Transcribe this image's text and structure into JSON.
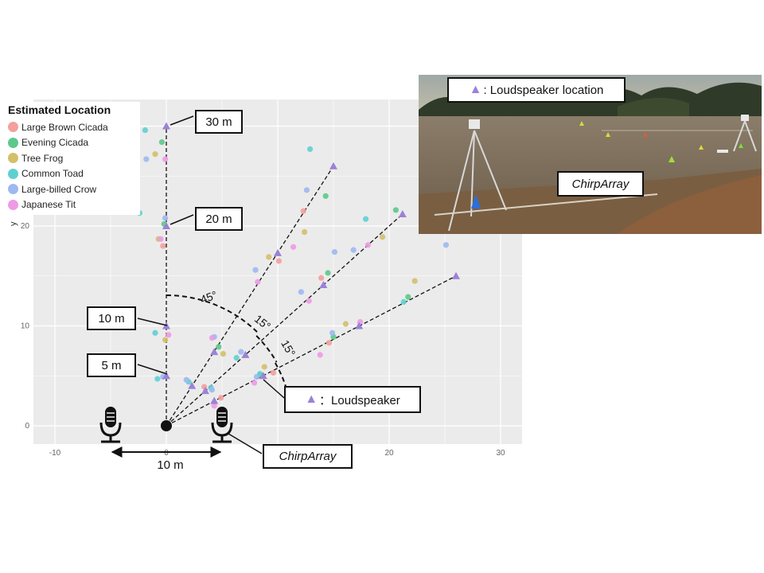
{
  "legend": {
    "title": "Estimated Location",
    "items": [
      {
        "label": "Large Brown Cicada",
        "color": "#F4A09C"
      },
      {
        "label": "Evening Cicada",
        "color": "#5CC98A"
      },
      {
        "label": "Tree Frog",
        "color": "#D4BF6A"
      },
      {
        "label": "Common Toad",
        "color": "#5FD0D0"
      },
      {
        "label": "Large-billed Crow",
        "color": "#9DB8F2"
      },
      {
        "label": "Japanese Tit",
        "color": "#EE9AE5"
      }
    ]
  },
  "axes": {
    "ylabel": "y",
    "xticks": [
      "-10",
      "0",
      "10",
      "20",
      "30"
    ],
    "yticks": [
      "0",
      "10",
      "20"
    ]
  },
  "callouts": {
    "d30": "30 m",
    "d20": "20 m",
    "d10": "10 m",
    "d5": "5 m",
    "loudspeaker_symbol": "▲",
    "loudspeaker": "：Loudspeaker",
    "chirparray": "ChirpArray",
    "spacing": "10 m"
  },
  "angles": {
    "a45": "45°",
    "a15a": "15°",
    "a15b": "15°"
  },
  "photo": {
    "legend_symbol": "▲",
    "legend_text": ": Loudspeaker location",
    "chirparray": "ChirpArray"
  },
  "colors": {
    "speaker": "#9B82D6",
    "panel": "#EBEBEB",
    "grid": "#FFFFFF"
  },
  "chart_data": {
    "type": "scatter",
    "x_range": [
      -11,
      32
    ],
    "y_range": [
      -2,
      33
    ],
    "microphones": [
      {
        "x": -5,
        "y": 0
      },
      {
        "x": 5,
        "y": 0
      }
    ],
    "origin": {
      "x": 0,
      "y": 0
    },
    "loudspeakers": [
      {
        "x": 0,
        "y": 5
      },
      {
        "x": 0,
        "y": 10
      },
      {
        "x": 0,
        "y": 20
      },
      {
        "x": 0,
        "y": 30
      },
      {
        "x": 2.3,
        "y": 4.0
      },
      {
        "x": 4.3,
        "y": 7.4
      },
      {
        "x": 10.0,
        "y": 17.3
      },
      {
        "x": 15.0,
        "y": 26.0
      },
      {
        "x": 3.5,
        "y": 3.5
      },
      {
        "x": 7.1,
        "y": 7.1
      },
      {
        "x": 14.1,
        "y": 14.1
      },
      {
        "x": 21.2,
        "y": 21.2
      },
      {
        "x": 4.3,
        "y": 2.5
      },
      {
        "x": 8.7,
        "y": 5.0
      },
      {
        "x": 17.3,
        "y": 10.0
      },
      {
        "x": 26.0,
        "y": 15.0
      }
    ],
    "estimated": [
      {
        "species": 0,
        "points": [
          [
            -0.3,
            18.0
          ],
          [
            12.3,
            21.5
          ],
          [
            10.1,
            16.5
          ],
          [
            13.9,
            14.8
          ],
          [
            3.4,
            3.9
          ],
          [
            4.9,
            2.8
          ],
          [
            9.6,
            5.3
          ],
          [
            14.6,
            8.3
          ]
        ]
      },
      {
        "species": 1,
        "points": [
          [
            -0.4,
            28.4
          ],
          [
            -0.2,
            20.2
          ],
          [
            14.3,
            23.0
          ],
          [
            14.5,
            15.3
          ],
          [
            20.6,
            21.6
          ],
          [
            21.7,
            12.9
          ],
          [
            4.7,
            7.9
          ],
          [
            8.4,
            5.1
          ],
          [
            15.0,
            8.9
          ]
        ]
      },
      {
        "species": 2,
        "points": [
          [
            -1.0,
            27.2
          ],
          [
            -0.7,
            18.7
          ],
          [
            -0.1,
            8.6
          ],
          [
            9.2,
            16.9
          ],
          [
            12.4,
            19.4
          ],
          [
            19.4,
            18.9
          ],
          [
            22.3,
            14.5
          ],
          [
            16.1,
            10.2
          ],
          [
            5.1,
            7.2
          ],
          [
            8.8,
            5.9
          ]
        ]
      },
      {
        "species": 3,
        "points": [
          [
            -1.9,
            29.6
          ],
          [
            -2.4,
            21.3
          ],
          [
            12.9,
            27.7
          ],
          [
            17.9,
            20.7
          ],
          [
            21.3,
            12.4
          ],
          [
            -1.0,
            9.3
          ],
          [
            -0.8,
            4.7
          ],
          [
            8.4,
            5.2
          ],
          [
            6.3,
            6.8
          ],
          [
            4.0,
            3.8
          ],
          [
            2.0,
            4.4
          ]
        ]
      },
      {
        "species": 4,
        "points": [
          [
            -1.8,
            26.7
          ],
          [
            -0.1,
            20.8
          ],
          [
            12.6,
            23.6
          ],
          [
            15.1,
            17.4
          ],
          [
            16.8,
            17.6
          ],
          [
            25.1,
            18.1
          ],
          [
            8.0,
            15.6
          ],
          [
            12.1,
            13.4
          ],
          [
            4.3,
            8.9
          ],
          [
            6.7,
            7.4
          ],
          [
            8.1,
            4.9
          ],
          [
            14.9,
            9.3
          ],
          [
            -0.3,
            4.9
          ],
          [
            4.1,
            3.6
          ],
          [
            1.8,
            4.6
          ]
        ]
      },
      {
        "species": 5,
        "points": [
          [
            -0.1,
            26.7
          ],
          [
            -0.5,
            18.7
          ],
          [
            11.4,
            17.9
          ],
          [
            18.1,
            18.1
          ],
          [
            8.2,
            14.4
          ],
          [
            12.8,
            12.5
          ],
          [
            13.8,
            7.1
          ],
          [
            17.4,
            10.4
          ],
          [
            4.1,
            8.8
          ],
          [
            7.9,
            4.3
          ],
          [
            4.3,
            2.0
          ],
          [
            0.2,
            9.1
          ]
        ]
      }
    ]
  }
}
